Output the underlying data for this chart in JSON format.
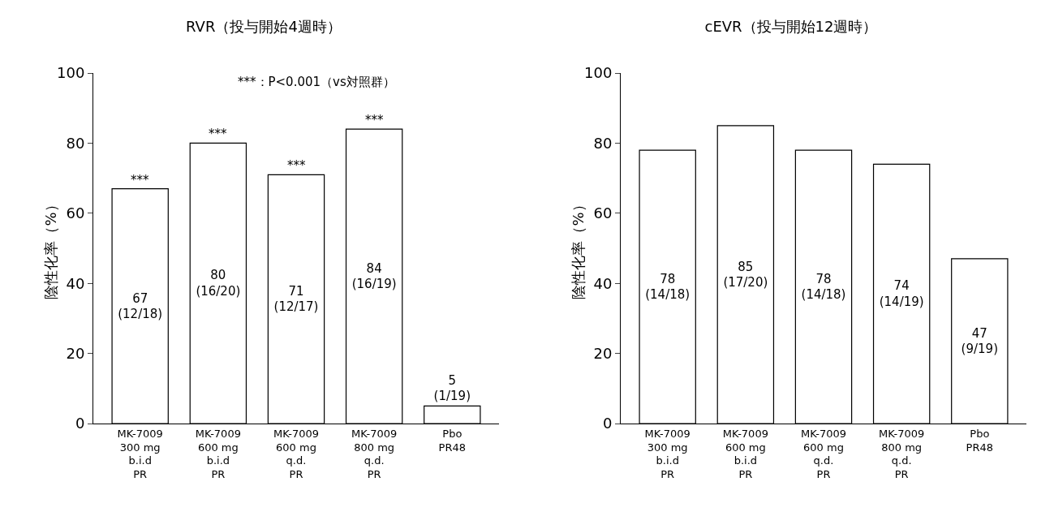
{
  "chart_data": [
    {
      "type": "bar",
      "title": "RVR（投与開始4週時）",
      "ylabel": "陰性化率（%）",
      "categories": [
        "MK-7009\n300 mg\nb.i.d\nPR",
        "MK-7009\n600 mg\nb.i.d\nPR",
        "MK-7009\n600 mg\nq.d.\nPR",
        "MK-7009\n800 mg\nq.d.\nPR",
        "Pbo\nPR48"
      ],
      "values": [
        67,
        80,
        71,
        84,
        5
      ],
      "value_labels": [
        "67\n(12/18)",
        "80\n(16/20)",
        "71\n(12/17)",
        "84\n(16/19)",
        "5\n(1/19)"
      ],
      "color": "#ffffff",
      "ylim": [
        0,
        100
      ],
      "yticks": [
        0,
        20,
        40,
        60,
        80,
        100
      ],
      "grid": false,
      "annotations": [
        "***：P<0.001（vs対照群）",
        {
          "text": "***",
          "x": "MK-7009\n300 mg\nb.i.d\nPR",
          "y": 67
        },
        {
          "text": "***",
          "x": "MK-7009\n600 mg\nb.i.d\nPR",
          "y": 80
        },
        {
          "text": "***",
          "x": "MK-7009\n600 mg\nq.d.\nPR",
          "y": 71
        },
        {
          "text": "***",
          "x": "MK-7009\n800 mg\nq.d.\nPR",
          "y": 84
        }
      ]
    },
    {
      "type": "bar",
      "title": "cEVR（投与開始12週時）",
      "ylabel": "陰性化率（%）",
      "categories": [
        "MK-7009\n300 mg\nb.i.d\nPR",
        "MK-7009\n600 mg\nb.i.d\nPR",
        "MK-7009\n600 mg\nq.d.\nPR",
        "MK-7009\n800 mg\nq.d.\nPR",
        "Pbo\nPR48"
      ],
      "values": [
        78,
        85,
        78,
        74,
        47
      ],
      "value_labels": [
        "78\n(14/18)",
        "85\n(17/20)",
        "78\n(14/18)",
        "74\n(14/19)",
        "47\n(9/19)"
      ],
      "color": "#ffffff",
      "ylim": [
        0,
        100
      ],
      "yticks": [
        0,
        20,
        40,
        60,
        80,
        100
      ],
      "grid": false
    }
  ]
}
